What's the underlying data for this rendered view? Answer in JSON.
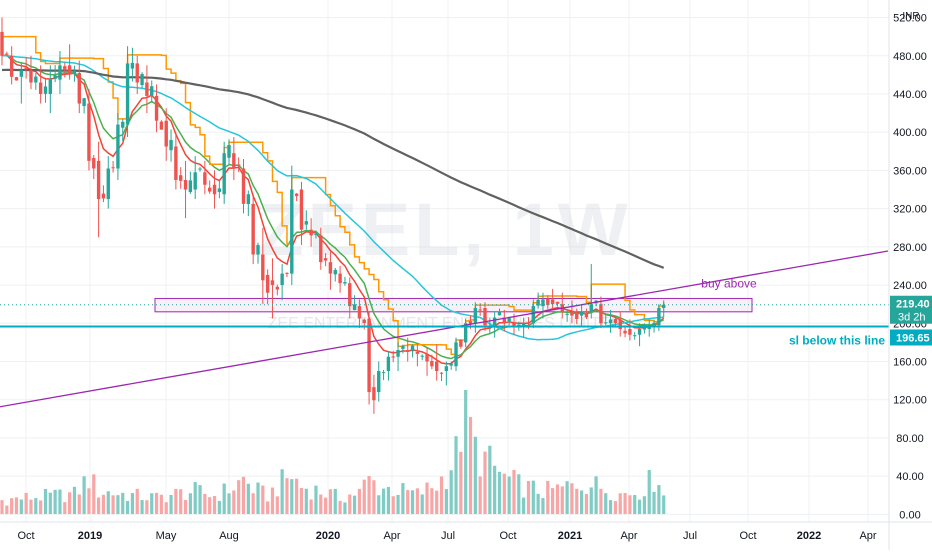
{
  "chart_data": {
    "type": "candlestick",
    "symbol_watermark": "ZEEL, 1W",
    "watermark_sub": "ZEE ENTERTAINMENT ENTERPRISES LIMITED",
    "currency": "INR",
    "y_axis": {
      "range": [
        -8,
        530
      ],
      "ticks": [
        "0.00",
        "40.00",
        "80.00",
        "120.00",
        "160.00",
        "200.00",
        "240.00",
        "280.00",
        "320.00",
        "360.00",
        "400.00",
        "440.00",
        "480.00",
        "520.00"
      ]
    },
    "x_axis": {
      "ticks": [
        {
          "label": "Oct",
          "bold": false
        },
        {
          "label": "2019",
          "bold": true
        },
        {
          "label": "May",
          "bold": false
        },
        {
          "label": "Aug",
          "bold": false
        },
        {
          "label": "2020",
          "bold": true
        },
        {
          "label": "Apr",
          "bold": false
        },
        {
          "label": "Jul",
          "bold": false
        },
        {
          "label": "Oct",
          "bold": false
        },
        {
          "label": "2021",
          "bold": true
        },
        {
          "label": "Apr",
          "bold": false
        },
        {
          "label": "Jul",
          "bold": false
        },
        {
          "label": "Oct",
          "bold": false
        },
        {
          "label": "2022",
          "bold": true
        },
        {
          "label": "Apr",
          "bold": false
        }
      ]
    },
    "last_price": "219.40",
    "countdown": "3d 2h",
    "stop_level": "196.65",
    "annotations": {
      "buy_zone": {
        "text": "buy above",
        "low": 212,
        "high": 226
      },
      "stop_line": {
        "text": "sl below this line",
        "value": 196.65
      },
      "trendline": {
        "from": [
          0,
          113
        ],
        "to": [
          141,
          238
        ]
      }
    },
    "ohlc_anchors": [
      [
        0,
        505,
        520,
        470,
        480
      ],
      [
        2,
        480,
        490,
        450,
        458
      ],
      [
        4,
        458,
        472,
        430,
        465
      ],
      [
        6,
        465,
        480,
        445,
        452
      ],
      [
        8,
        452,
        470,
        430,
        440
      ],
      [
        10,
        440,
        470,
        420,
        455
      ],
      [
        12,
        455,
        485,
        440,
        470
      ],
      [
        14,
        470,
        492,
        455,
        462
      ],
      [
        16,
        462,
        475,
        420,
        430
      ],
      [
        18,
        430,
        445,
        360,
        370
      ],
      [
        20,
        370,
        390,
        290,
        330
      ],
      [
        22,
        330,
        375,
        320,
        362
      ],
      [
        24,
        362,
        420,
        350,
        408
      ],
      [
        26,
        408,
        490,
        395,
        472
      ],
      [
        28,
        472,
        480,
        440,
        452
      ],
      [
        30,
        452,
        470,
        420,
        438
      ],
      [
        32,
        438,
        450,
        400,
        412
      ],
      [
        34,
        412,
        425,
        370,
        385
      ],
      [
        36,
        385,
        400,
        340,
        350
      ],
      [
        38,
        350,
        370,
        310,
        340
      ],
      [
        40,
        340,
        375,
        330,
        358
      ],
      [
        42,
        358,
        370,
        335,
        345
      ],
      [
        44,
        345,
        360,
        320,
        335
      ],
      [
        46,
        335,
        390,
        325,
        378
      ],
      [
        48,
        378,
        395,
        350,
        362
      ],
      [
        50,
        362,
        372,
        315,
        325
      ],
      [
        52,
        325,
        332,
        262,
        272
      ],
      [
        54,
        272,
        300,
        220,
        245
      ],
      [
        56,
        245,
        268,
        205,
        240
      ],
      [
        58,
        240,
        262,
        224,
        252
      ],
      [
        60,
        252,
        365,
        240,
        340
      ],
      [
        62,
        340,
        348,
        282,
        298
      ],
      [
        64,
        298,
        310,
        280,
        292
      ],
      [
        66,
        292,
        300,
        256,
        264
      ],
      [
        68,
        264,
        275,
        235,
        252
      ],
      [
        70,
        252,
        260,
        232,
        242
      ],
      [
        72,
        242,
        248,
        205,
        218
      ],
      [
        74,
        218,
        225,
        195,
        205
      ],
      [
        76,
        205,
        212,
        115,
        128
      ],
      [
        78,
        128,
        160,
        118,
        150
      ],
      [
        80,
        150,
        170,
        140,
        165
      ],
      [
        82,
        165,
        180,
        150,
        172
      ],
      [
        84,
        172,
        185,
        160,
        170
      ],
      [
        86,
        170,
        178,
        155,
        168
      ],
      [
        88,
        168,
        175,
        145,
        160
      ],
      [
        90,
        160,
        178,
        140,
        150
      ],
      [
        92,
        150,
        160,
        135,
        155
      ],
      [
        94,
        155,
        185,
        150,
        180
      ],
      [
        96,
        180,
        205,
        175,
        200
      ],
      [
        98,
        200,
        222,
        190,
        216
      ],
      [
        100,
        216,
        222,
        192,
        198
      ],
      [
        102,
        198,
        212,
        185,
        206
      ],
      [
        104,
        206,
        214,
        192,
        200
      ],
      [
        106,
        200,
        210,
        188,
        196
      ],
      [
        108,
        196,
        206,
        185,
        200
      ],
      [
        110,
        200,
        225,
        195,
        218
      ],
      [
        112,
        218,
        232,
        205,
        225
      ],
      [
        114,
        225,
        236,
        215,
        220
      ],
      [
        116,
        220,
        232,
        205,
        212
      ],
      [
        118,
        212,
        224,
        200,
        208
      ],
      [
        120,
        208,
        220,
        196,
        212
      ],
      [
        122,
        212,
        262,
        205,
        220
      ],
      [
        124,
        220,
        228,
        195,
        200
      ],
      [
        126,
        200,
        214,
        190,
        204
      ],
      [
        128,
        204,
        212,
        186,
        194
      ],
      [
        130,
        194,
        204,
        182,
        188
      ],
      [
        132,
        188,
        200,
        176,
        194
      ],
      [
        134,
        194,
        204,
        186,
        198
      ],
      [
        136,
        198,
        220,
        192,
        216
      ],
      [
        137,
        216,
        224,
        206,
        219.4
      ]
    ],
    "volume_anchors": [
      [
        0,
        15
      ],
      [
        5,
        18
      ],
      [
        10,
        20
      ],
      [
        15,
        22
      ],
      [
        18,
        40
      ],
      [
        20,
        25
      ],
      [
        25,
        22
      ],
      [
        28,
        20
      ],
      [
        32,
        18
      ],
      [
        36,
        22
      ],
      [
        40,
        25
      ],
      [
        44,
        20
      ],
      [
        48,
        30
      ],
      [
        50,
        38
      ],
      [
        52,
        28
      ],
      [
        55,
        20
      ],
      [
        58,
        35
      ],
      [
        60,
        42
      ],
      [
        62,
        30
      ],
      [
        66,
        25
      ],
      [
        70,
        18
      ],
      [
        74,
        24
      ],
      [
        76,
        38
      ],
      [
        78,
        30
      ],
      [
        82,
        26
      ],
      [
        86,
        22
      ],
      [
        90,
        32
      ],
      [
        92,
        45
      ],
      [
        94,
        65
      ],
      [
        96,
        120
      ],
      [
        98,
        70
      ],
      [
        100,
        60
      ],
      [
        104,
        40
      ],
      [
        108,
        30
      ],
      [
        112,
        25
      ],
      [
        116,
        28
      ],
      [
        120,
        35
      ],
      [
        124,
        30
      ],
      [
        128,
        22
      ],
      [
        132,
        25
      ],
      [
        134,
        35
      ],
      [
        136,
        42
      ],
      [
        137,
        20
      ]
    ],
    "volume_scale_max": 130,
    "lines": [
      {
        "name": "",
        "color": "#f44336",
        "period": 8
      },
      {
        "name": "",
        "color": "#4caf50",
        "period": 13
      },
      {
        "name": "",
        "color": "#ff9800",
        "step": true
      },
      {
        "name": "",
        "color": "#26c6da",
        "period": 40
      },
      {
        "name": "",
        "color": "#616161",
        "period": 120,
        "warmup": 465
      }
    ],
    "colors": {
      "up": "#26a69a",
      "down": "#ef5350",
      "vol_up": "#80cbc4",
      "vol_down": "#f8a5a5",
      "grid": "#eef0f3",
      "axis_text": "#131722",
      "purple": "#9c27b0",
      "teal": "#00acc1",
      "zone_fill": "#f3e5f5",
      "price_label_bg": "#26a69a"
    },
    "grid": true
  }
}
